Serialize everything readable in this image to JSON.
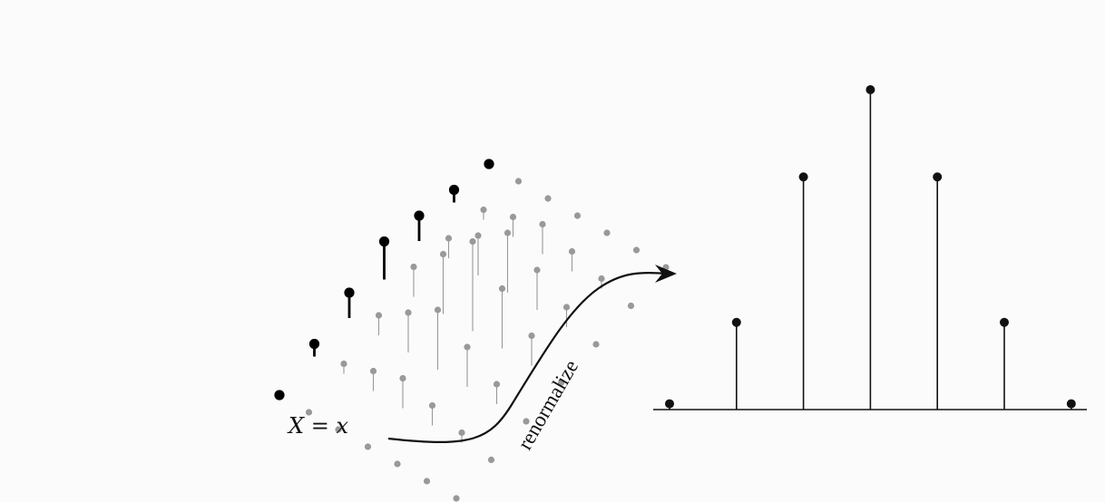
{
  "condition_label": "X = x",
  "arrow_label": "renormalize",
  "colors": {
    "background": "#fbfbfb",
    "faded": "#999999",
    "highlight": "#000000"
  },
  "joint_distribution": {
    "highlighted_slice_values": [
      0,
      1,
      2,
      3,
      2,
      1,
      0
    ]
  },
  "conditional_distribution": {
    "type": "stem",
    "values": [
      1,
      15,
      40,
      55,
      40,
      15,
      1
    ]
  }
}
